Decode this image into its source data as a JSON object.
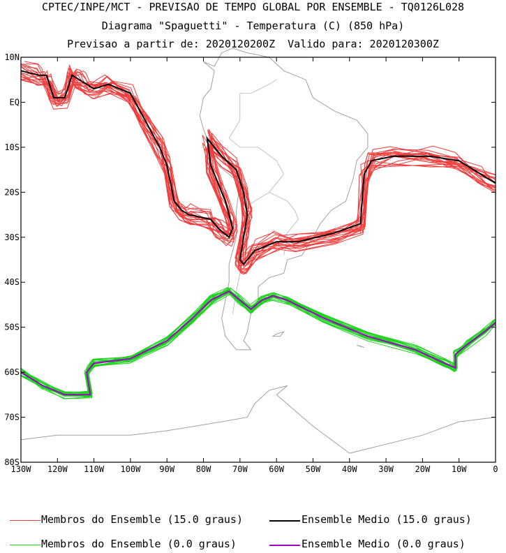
{
  "header": {
    "line1": "CPTEC/INPE/MCT - PREVISAO DE TEMPO GLOBAL POR ENSEMBLE - TQ0126L028",
    "line2": "Diagrama \"Spaguetti\" - Temperatura (C) (850 hPa)",
    "line3": "Previsao a partir de: 2020120200Z  Valido para: 2020120300Z"
  },
  "colors": {
    "member_15": "#f03c3c",
    "mean_15": "#000000",
    "member_0": "#1ed21e",
    "mean_0": "#a000c8",
    "coast": "#a0a0a0"
  },
  "chart_data": {
    "type": "line",
    "xlim": [
      -130,
      0
    ],
    "ylim": [
      -80,
      10
    ],
    "x_ticks": [
      "130W",
      "120W",
      "110W",
      "100W",
      "90W",
      "80W",
      "70W",
      "60W",
      "50W",
      "40W",
      "30W",
      "20W",
      "10W",
      "0"
    ],
    "y_ticks": [
      "10N",
      "EQ",
      "10S",
      "20S",
      "30S",
      "40S",
      "50S",
      "60S",
      "70S",
      "80S"
    ],
    "series": [
      {
        "name": "Ensemble Medio (15.0 graus)",
        "color": "#000000",
        "points": [
          [
            -130,
            7
          ],
          [
            -125,
            6
          ],
          [
            -123,
            6
          ],
          [
            -121,
            1
          ],
          [
            -118,
            1
          ],
          [
            -116,
            6
          ],
          [
            -114,
            5
          ],
          [
            -112,
            4
          ],
          [
            -110,
            3
          ],
          [
            -106,
            4
          ],
          [
            -100,
            2
          ],
          [
            -96,
            -4
          ],
          [
            -92,
            -10
          ],
          [
            -90,
            -14
          ],
          [
            -88,
            -22
          ],
          [
            -86,
            -24
          ],
          [
            -84,
            -25
          ],
          [
            -78,
            -26
          ],
          [
            -76,
            -28
          ],
          [
            -73,
            -30
          ],
          [
            -72,
            -28
          ],
          [
            -74,
            -22
          ],
          [
            -78,
            -14
          ],
          [
            -79,
            -8
          ],
          [
            -75,
            -12
          ],
          [
            -71,
            -15
          ],
          [
            -69,
            -20
          ],
          [
            -68,
            -25
          ],
          [
            -69,
            -30
          ],
          [
            -70,
            -35
          ],
          [
            -69,
            -36
          ],
          [
            -66,
            -33
          ],
          [
            -60,
            -31
          ],
          [
            -54,
            -31
          ],
          [
            -44,
            -29
          ],
          [
            -37,
            -27
          ],
          [
            -36,
            -16
          ],
          [
            -34,
            -13
          ],
          [
            -28,
            -12
          ],
          [
            -18,
            -12
          ],
          [
            -10,
            -13
          ],
          [
            -4,
            -16
          ],
          [
            0,
            -18
          ]
        ]
      },
      {
        "name": "Ensemble Medio (0.0 graus)",
        "color": "#a000c8",
        "points": [
          [
            -130,
            -60
          ],
          [
            -124,
            -63
          ],
          [
            -118,
            -65
          ],
          [
            -111,
            -65
          ],
          [
            -112,
            -60
          ],
          [
            -110,
            -58
          ],
          [
            -100,
            -57
          ],
          [
            -90,
            -53
          ],
          [
            -83,
            -48
          ],
          [
            -78,
            -44
          ],
          [
            -73,
            -42
          ],
          [
            -70,
            -44
          ],
          [
            -67,
            -46
          ],
          [
            -64,
            -44
          ],
          [
            -61,
            -43
          ],
          [
            -57,
            -44
          ],
          [
            -47,
            -48
          ],
          [
            -35,
            -52
          ],
          [
            -22,
            -55
          ],
          [
            -14,
            -58
          ],
          [
            -11,
            -59
          ],
          [
            -11,
            -56
          ],
          [
            -8,
            -54
          ],
          [
            -3,
            -51
          ],
          [
            0,
            -49
          ]
        ]
      }
    ]
  },
  "legend": {
    "members_15": "Membros do Ensemble (15.0 graus)",
    "mean_15": "Ensemble Medio (15.0 graus)",
    "members_0": "Membros do Ensemble (0.0 graus)",
    "mean_0": "Ensemble Medio (0.0 graus)"
  }
}
